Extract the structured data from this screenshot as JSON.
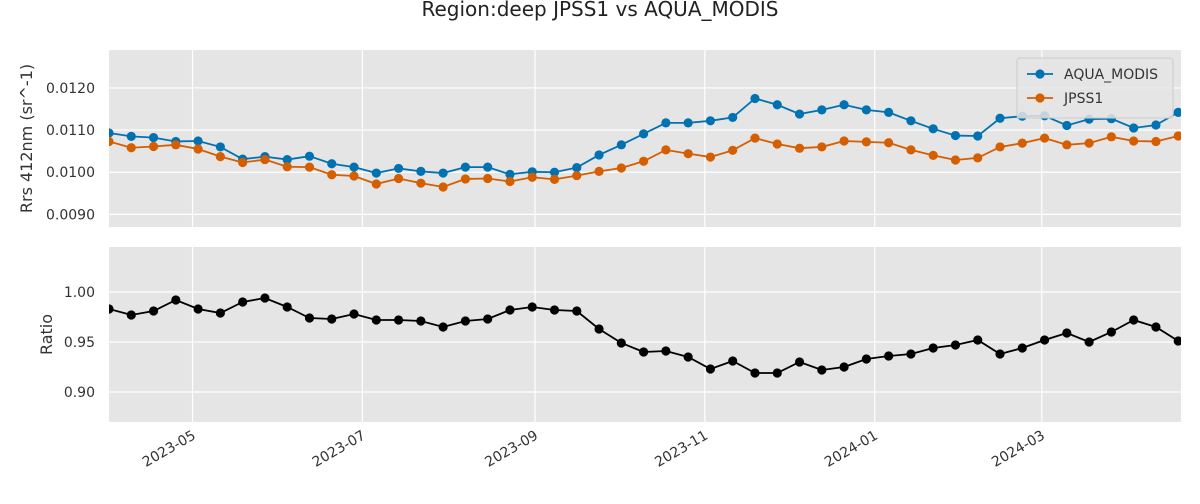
{
  "chart_data": {
    "title": "Region:deep JPSS1 vs AQUA_MODIS",
    "x_axis": {
      "type": "date",
      "range": [
        "2023-04-01",
        "2024-04-20"
      ],
      "tick_dates": [
        "2023-05-01",
        "2023-07-01",
        "2023-09-01",
        "2023-11-01",
        "2024-01-01",
        "2024-03-01"
      ],
      "tick_labels": [
        "2023-05",
        "2023-07",
        "2023-09",
        "2023-11",
        "2024-01",
        "2024-03"
      ]
    },
    "panels": [
      {
        "type": "line",
        "ylabel": "Rrs 412nm (sr^-1)",
        "ylim": [
          0.0087,
          0.0129
        ],
        "yticks": [
          0.009,
          0.01,
          0.011,
          0.012
        ],
        "ytick_labels": [
          "0.0090",
          "0.0100",
          "0.0110",
          "0.0120"
        ],
        "grid": true,
        "legend": "top-right",
        "series": [
          {
            "name": "AQUA_MODIS",
            "color": "#0072b2",
            "x": [
              "2023-04-01",
              "2023-04-09",
              "2023-04-17",
              "2023-04-25",
              "2023-05-03",
              "2023-05-11",
              "2023-05-19",
              "2023-05-27",
              "2023-06-04",
              "2023-06-12",
              "2023-06-20",
              "2023-06-28",
              "2023-07-06",
              "2023-07-14",
              "2023-07-22",
              "2023-07-30",
              "2023-08-07",
              "2023-08-15",
              "2023-08-23",
              "2023-08-31",
              "2023-09-08",
              "2023-09-16",
              "2023-09-24",
              "2023-10-02",
              "2023-10-10",
              "2023-10-18",
              "2023-10-26",
              "2023-11-03",
              "2023-11-11",
              "2023-11-19",
              "2023-11-27",
              "2023-12-05",
              "2023-12-13",
              "2023-12-21",
              "2023-12-29",
              "2024-01-06",
              "2024-01-14",
              "2024-01-22",
              "2024-01-30",
              "2024-02-07",
              "2024-02-15",
              "2024-02-23",
              "2024-03-02",
              "2024-03-10",
              "2024-03-18",
              "2024-03-26",
              "2024-04-03",
              "2024-04-11",
              "2024-04-19"
            ],
            "values": [
              0.01093,
              0.01085,
              0.01082,
              0.01073,
              0.01074,
              0.0106,
              0.01031,
              0.01037,
              0.0103,
              0.01038,
              0.0102,
              0.01012,
              0.00998,
              0.01009,
              0.01002,
              0.00998,
              0.01012,
              0.01012,
              0.00995,
              0.01001,
              0.01,
              0.01011,
              0.01041,
              0.01065,
              0.01091,
              0.01117,
              0.01117,
              0.01122,
              0.0113,
              0.01175,
              0.0116,
              0.01138,
              0.01148,
              0.0116,
              0.01148,
              0.01142,
              0.01122,
              0.01103,
              0.01087,
              0.01086,
              0.01128,
              0.01133,
              0.01134,
              0.01111,
              0.01126,
              0.01127,
              0.01105,
              0.01112,
              0.01142
            ]
          },
          {
            "name": "JPSS1",
            "color": "#d55e00",
            "x": [
              "2023-04-01",
              "2023-04-09",
              "2023-04-17",
              "2023-04-25",
              "2023-05-03",
              "2023-05-11",
              "2023-05-19",
              "2023-05-27",
              "2023-06-04",
              "2023-06-12",
              "2023-06-20",
              "2023-06-28",
              "2023-07-06",
              "2023-07-14",
              "2023-07-22",
              "2023-07-30",
              "2023-08-07",
              "2023-08-15",
              "2023-08-23",
              "2023-08-31",
              "2023-09-08",
              "2023-09-16",
              "2023-09-24",
              "2023-10-02",
              "2023-10-10",
              "2023-10-18",
              "2023-10-26",
              "2023-11-03",
              "2023-11-11",
              "2023-11-19",
              "2023-11-27",
              "2023-12-05",
              "2023-12-13",
              "2023-12-21",
              "2023-12-29",
              "2024-01-06",
              "2024-01-14",
              "2024-01-22",
              "2024-01-30",
              "2024-02-07",
              "2024-02-15",
              "2024-02-23",
              "2024-03-02",
              "2024-03-10",
              "2024-03-18",
              "2024-03-26",
              "2024-04-03",
              "2024-04-11",
              "2024-04-19"
            ],
            "values": [
              0.01073,
              0.01058,
              0.01061,
              0.01065,
              0.01055,
              0.01037,
              0.01023,
              0.0103,
              0.01013,
              0.01012,
              0.00994,
              0.00991,
              0.00972,
              0.00985,
              0.00974,
              0.00965,
              0.00984,
              0.00985,
              0.00978,
              0.00988,
              0.00983,
              0.00992,
              0.01002,
              0.0101,
              0.01026,
              0.01053,
              0.01044,
              0.01036,
              0.01052,
              0.01081,
              0.01067,
              0.01057,
              0.0106,
              0.01074,
              0.01072,
              0.0107,
              0.01053,
              0.0104,
              0.01029,
              0.01034,
              0.0106,
              0.01069,
              0.01081,
              0.01065,
              0.01069,
              0.01084,
              0.01074,
              0.01073,
              0.01086
            ]
          }
        ]
      },
      {
        "type": "line",
        "ylabel": "Ratio",
        "ylim": [
          0.87,
          1.045
        ],
        "yticks": [
          0.9,
          0.95,
          1.0
        ],
        "ytick_labels": [
          "0.90",
          "0.95",
          "1.00"
        ],
        "grid": true,
        "series": [
          {
            "name": "",
            "color": "#000000",
            "x": [
              "2023-04-01",
              "2023-04-09",
              "2023-04-17",
              "2023-04-25",
              "2023-05-03",
              "2023-05-11",
              "2023-05-19",
              "2023-05-27",
              "2023-06-04",
              "2023-06-12",
              "2023-06-20",
              "2023-06-28",
              "2023-07-06",
              "2023-07-14",
              "2023-07-22",
              "2023-07-30",
              "2023-08-07",
              "2023-08-15",
              "2023-08-23",
              "2023-08-31",
              "2023-09-08",
              "2023-09-16",
              "2023-09-24",
              "2023-10-02",
              "2023-10-10",
              "2023-10-18",
              "2023-10-26",
              "2023-11-03",
              "2023-11-11",
              "2023-11-19",
              "2023-11-27",
              "2023-12-05",
              "2023-12-13",
              "2023-12-21",
              "2023-12-29",
              "2024-01-06",
              "2024-01-14",
              "2024-01-22",
              "2024-01-30",
              "2024-02-07",
              "2024-02-15",
              "2024-02-23",
              "2024-03-02",
              "2024-03-10",
              "2024-03-18",
              "2024-03-26",
              "2024-04-03",
              "2024-04-11",
              "2024-04-19"
            ],
            "values": [
              0.983,
              0.977,
              0.981,
              0.992,
              0.983,
              0.979,
              0.99,
              0.994,
              0.985,
              0.974,
              0.973,
              0.978,
              0.972,
              0.972,
              0.971,
              0.965,
              0.971,
              0.973,
              0.982,
              0.985,
              0.982,
              0.981,
              0.963,
              0.949,
              0.94,
              0.941,
              0.935,
              0.923,
              0.931,
              0.919,
              0.919,
              0.93,
              0.922,
              0.925,
              0.933,
              0.936,
              0.938,
              0.944,
              0.947,
              0.952,
              0.938,
              0.944,
              0.952,
              0.959,
              0.95,
              0.96,
              0.972,
              0.965,
              0.951
            ]
          }
        ]
      }
    ]
  }
}
